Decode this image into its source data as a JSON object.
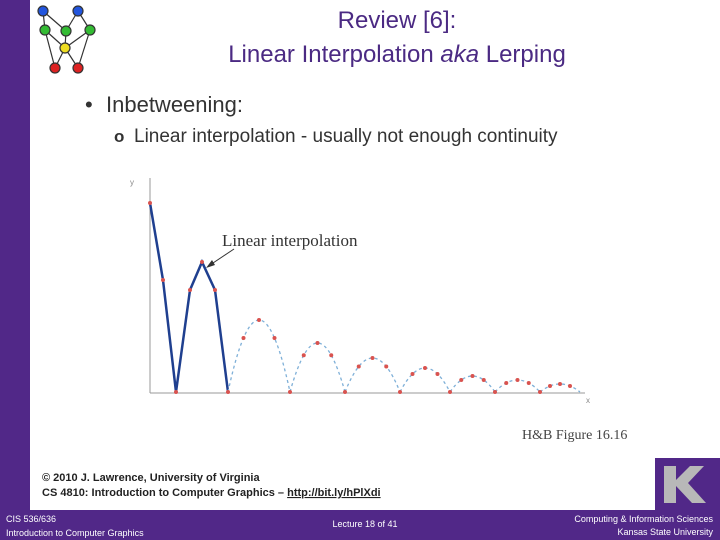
{
  "title": {
    "line1": "Review [6]:",
    "line2_before": "Linear Interpolation",
    "line2_italic": "aka",
    "line2_after": "Lerping"
  },
  "bullets": [
    {
      "text": "Inbetweening:",
      "sub": [
        "Linear interpolation - usually not enough continuity"
      ]
    }
  ],
  "figure": {
    "y_axis": "y",
    "x_axis": "x",
    "label": "Linear interpolation",
    "caption": "H&B Figure 16.16"
  },
  "credits": {
    "line1": "© 2010 J. Lawrence, University of Virginia",
    "line2": "CS 4810: Introduction to Computer Graphics –",
    "link": "http://bit.ly/hPlXdi"
  },
  "footer": {
    "left": [
      "CIS 536/636",
      "Introduction to Computer Graphics"
    ],
    "center": "Lecture 18 of 41",
    "right": [
      "Computing & Information Sciences",
      "Kansas State University"
    ]
  }
}
